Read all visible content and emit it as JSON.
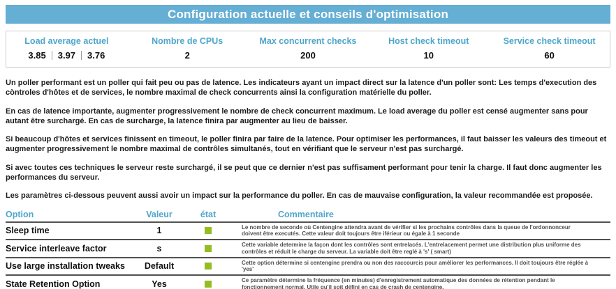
{
  "title": "Configuration actuelle et conseils d'optimisation",
  "colors": {
    "banner_background": "#65aed4",
    "header_text_blue": "#4ea6cb",
    "status_ok_green": "#94bd20",
    "row_separator": "#515151"
  },
  "stats": {
    "cards": [
      {
        "label": "Load average actuel",
        "values": [
          "3.85",
          "3.97",
          "3.76"
        ]
      },
      {
        "label": "Nombre de CPUs",
        "value": "2"
      },
      {
        "label": "Max concurrent checks",
        "value": "200"
      },
      {
        "label": "Host check timeout",
        "value": "10"
      },
      {
        "label": "Service check timeout",
        "value": "60"
      }
    ]
  },
  "paragraphs": [
    "Un poller performant est un poller qui fait peu ou pas de latence. Les indicateurs ayant un impact direct sur la latence d'un poller sont: Les temps d'execution des còntroles d'hôtes et de services, le nombre maximal de check concurrents ainsi la configuration matérielle du poller.",
    "En cas de latence importante, augmenter progressivement le nombre de check concurrent maximum. Le load average du poller est censé augmenter sans pour autant être surchargé. En cas de surcharge, la latence finira par augmenter au lieu de baisser.",
    "Si beaucoup d'hôtes et services finissent en timeout, le poller finira par faire de la latence. Pour optimiser les performances, il faut baisser les valeurs des timeout et augmenter progressivement le nombre maximal de contrôles simultanés, tout en vérifiant que le serveur n'est pas surchargé.",
    "Si avec toutes ces techniques le serveur reste surchargé, il se peut que ce dernier n'est pas suffisament performant pour tenir la charge. Il faut donc augmenter les performances du serveur.",
    "Les paramètres ci-dessous peuvent aussi avoir un impact sur la performance du poller. En cas de mauvaise configuration, la valeur recommandée est proposée."
  ],
  "options_table": {
    "headers": {
      "option": "Option",
      "value": "Valeur",
      "state": "état",
      "comment": "Commentaire"
    },
    "rows": [
      {
        "option": "Sleep time",
        "value": "1",
        "state": "ok",
        "comment": "Le nombre de seconde où Centengine attendra avant de vérifier si les prochains contrôles dans la queue de l'ordonnonceur doivent être executés. Cette valeur doit toujours être iférieur ou égale à 1 seconde"
      },
      {
        "option": "Service interleave factor",
        "value": "s",
        "state": "ok",
        "comment": "Cette variable determine la façon dont les contrôles sont entrelacés. L'entrelacement permet une distribution plus uniforme des contrôles et réduit le charge du serveur. La variable doit être reglé à 's' ( smart)"
      },
      {
        "option": "Use large installation tweaks",
        "value": "Default",
        "state": "ok",
        "comment": "Cette option détermine si centengine prendra ou non des raccourcis pour améliorer les performances. Il doit toujours être réglée à 'yes'"
      },
      {
        "option": "State Retention Option",
        "value": "Yes",
        "state": "ok",
        "comment": "Ce paramètre détermine la fréquence (en minutes) d'enregistrement automatique des données de rétention pendant le fonctionnement normal. Utile qu'il soit défini en cas de crash de centengine."
      }
    ]
  }
}
